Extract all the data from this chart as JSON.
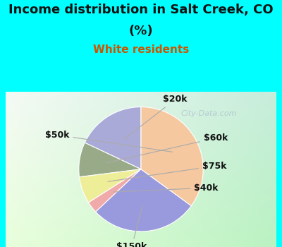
{
  "title_line1": "Income distribution in Salt Creek, CO",
  "title_line2": "(%)",
  "subtitle": "White residents",
  "title_fontsize": 13,
  "subtitle_fontsize": 11,
  "labels": [
    "$20k",
    "$60k",
    "$75k",
    "$40k",
    "$150k",
    "$50k"
  ],
  "sizes": [
    18,
    9,
    7,
    3,
    28,
    35
  ],
  "colors": [
    "#aaaad8",
    "#99aa88",
    "#eeee99",
    "#f0aaaa",
    "#9999dd",
    "#f5c8a0"
  ],
  "startangle": 90,
  "bg_cyan": "#00ffff",
  "bg_chart_tl": "#e8f8f0",
  "bg_chart_br": "#aaddcc",
  "watermark": "City-Data.com",
  "label_fontsize": 9,
  "label_color": "#111111",
  "subtitle_color": "#cc5500"
}
